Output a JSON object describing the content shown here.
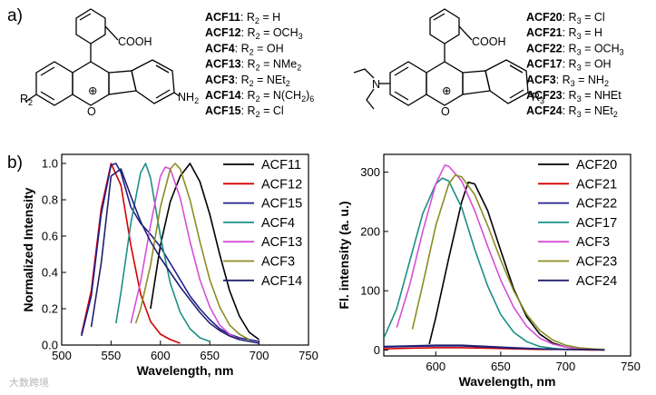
{
  "panel_a": {
    "label": "a)",
    "structure1": {
      "groups": {
        "acid": "COOH",
        "amine": "NH",
        "amine_sub": "2",
        "r_group": "R",
        "r_group_sub": "2",
        "oxygen": "O",
        "charge": "⊕"
      },
      "compounds": [
        {
          "name": "ACF11",
          "prefix": ": R",
          "sub": "2",
          "value": " = H"
        },
        {
          "name": "ACF12",
          "prefix": ": R",
          "sub": "2",
          "value": " = OCH",
          "value_sub": "3"
        },
        {
          "name": "ACF4",
          "prefix": ": R",
          "sub": "2",
          "value": " = OH"
        },
        {
          "name": "ACF13",
          "prefix": ": R",
          "sub": "2",
          "value": " = NMe",
          "value_sub": "2"
        },
        {
          "name": "ACF3",
          "prefix": ": R",
          "sub": "2",
          "value": " = NEt",
          "value_sub": "2"
        },
        {
          "name": "ACF14",
          "prefix": ": R",
          "sub": "2",
          "value": " = N(CH",
          "value_sub": "2",
          "value_tail": ")",
          "tail_sub": "6"
        },
        {
          "name": "ACF15",
          "prefix": ": R",
          "sub": "2",
          "value": " = Cl"
        }
      ]
    },
    "structure2": {
      "groups": {
        "acid": "COOH",
        "r_group": "R",
        "r_group_sub": "3",
        "nitrogen": "N",
        "oxygen": "O",
        "charge": "⊕"
      },
      "compounds": [
        {
          "name": "ACF20",
          "prefix": ": R",
          "sub": "3",
          "value": " = Cl"
        },
        {
          "name": "ACF21",
          "prefix": ": R",
          "sub": "3",
          "value": " = H"
        },
        {
          "name": "ACF22",
          "prefix": ": R",
          "sub": "3",
          "value": " = OCH",
          "value_sub": "3"
        },
        {
          "name": "ACF17",
          "prefix": ": R",
          "sub": "3",
          "value": " = OH"
        },
        {
          "name": "ACF3",
          "prefix": ": R",
          "sub": "3",
          "value": " = NH",
          "value_sub": "2"
        },
        {
          "name": "ACF23",
          "prefix": ": R",
          "sub": "3",
          "value": " = NHEt"
        },
        {
          "name": "ACF24",
          "prefix": ": R",
          "sub": "3",
          "value": " = NEt",
          "value_sub": "2"
        }
      ]
    }
  },
  "panel_b_label": "b)",
  "watermark": "大数跨境",
  "chart_data": [
    {
      "type": "line",
      "xlabel": "Wavelength, nm",
      "ylabel": "Normalized Intensity",
      "xlim": [
        500,
        750
      ],
      "ylim": [
        0,
        1.05
      ],
      "xticks": [
        500,
        550,
        600,
        650,
        700,
        750
      ],
      "yticks": [
        0.0,
        0.2,
        0.4,
        0.6,
        0.8,
        1.0
      ],
      "ytick_labels": [
        "0.0",
        "0.2",
        "0.4",
        "0.6",
        "0.8",
        "1.0"
      ],
      "legend_position": "top-right",
      "series": [
        {
          "name": "ACF11",
          "color": "#000000",
          "x": [
            590,
            600,
            610,
            620,
            630,
            640,
            650,
            660,
            670,
            680,
            690,
            700
          ],
          "y": [
            0.2,
            0.55,
            0.79,
            0.93,
            1.0,
            0.9,
            0.72,
            0.5,
            0.3,
            0.16,
            0.07,
            0.03
          ]
        },
        {
          "name": "ACF12",
          "color": "#d40000",
          "x": [
            520,
            530,
            540,
            550,
            560,
            570,
            580,
            590,
            600,
            610,
            620
          ],
          "y": [
            0.06,
            0.3,
            0.75,
            1.0,
            0.88,
            0.55,
            0.28,
            0.13,
            0.06,
            0.03,
            0.01
          ]
        },
        {
          "name": "ACF15",
          "color": "#1f1f8c",
          "x": [
            520,
            530,
            540,
            550,
            555,
            560,
            570,
            580,
            590,
            600,
            610,
            620,
            630,
            640,
            650,
            660,
            670,
            680,
            690,
            700
          ],
          "y": [
            0.05,
            0.27,
            0.72,
            0.99,
            1.0,
            0.95,
            0.76,
            0.67,
            0.61,
            0.54,
            0.45,
            0.36,
            0.27,
            0.2,
            0.14,
            0.09,
            0.06,
            0.04,
            0.03,
            0.02
          ]
        },
        {
          "name": "ACF4",
          "color": "#1b8f86",
          "x": [
            555,
            560,
            570,
            580,
            585,
            590,
            600,
            610,
            620,
            630,
            640,
            650
          ],
          "y": [
            0.12,
            0.29,
            0.67,
            0.95,
            1.0,
            0.92,
            0.6,
            0.34,
            0.18,
            0.09,
            0.04,
            0.02
          ]
        },
        {
          "name": "ACF13",
          "color": "#d64fd6",
          "x": [
            570,
            580,
            590,
            600,
            605,
            610,
            620,
            630,
            640,
            650,
            660,
            670,
            680
          ],
          "y": [
            0.12,
            0.35,
            0.66,
            0.93,
            0.98,
            0.97,
            0.81,
            0.57,
            0.36,
            0.21,
            0.11,
            0.06,
            0.03
          ]
        },
        {
          "name": "ACF3",
          "color": "#8c8c23",
          "x": [
            575,
            580,
            590,
            600,
            610,
            615,
            620,
            630,
            640,
            650,
            660,
            670,
            680,
            690
          ],
          "y": [
            0.12,
            0.2,
            0.44,
            0.76,
            0.97,
            1.0,
            0.97,
            0.8,
            0.57,
            0.36,
            0.21,
            0.11,
            0.06,
            0.03
          ]
        },
        {
          "name": "ACF14",
          "color": "#20206e",
          "x": [
            530,
            540,
            550,
            560,
            570,
            580,
            590,
            600,
            610,
            620,
            630,
            640,
            650,
            660,
            670,
            680,
            690,
            700
          ],
          "y": [
            0.1,
            0.45,
            0.93,
            0.97,
            0.82,
            0.68,
            0.57,
            0.48,
            0.4,
            0.32,
            0.25,
            0.18,
            0.12,
            0.08,
            0.05,
            0.03,
            0.02,
            0.01
          ]
        }
      ]
    },
    {
      "type": "line",
      "xlabel": "Wavelength, nm",
      "ylabel": "Fl. intensity (a. u.)",
      "xlim": [
        560,
        750
      ],
      "ylim": [
        -10,
        330
      ],
      "xticks": [
        600,
        650,
        700,
        750
      ],
      "yticks": [
        0,
        100,
        200,
        300
      ],
      "ytick_labels": [
        "0",
        "100",
        "200",
        "300"
      ],
      "legend_position": "top-right",
      "series": [
        {
          "name": "ACF20",
          "color": "#000000",
          "x": [
            595,
            600,
            610,
            620,
            625,
            630,
            640,
            650,
            660,
            670,
            680,
            690,
            700,
            710
          ],
          "y": [
            10,
            55,
            155,
            250,
            283,
            280,
            235,
            168,
            103,
            56,
            27,
            12,
            5,
            2
          ]
        },
        {
          "name": "ACF21",
          "color": "#d40000",
          "x": [
            560,
            580,
            600,
            620,
            640,
            660,
            680,
            700,
            720,
            730
          ],
          "y": [
            2,
            3,
            4,
            4,
            3,
            2,
            1,
            1,
            0,
            0
          ]
        },
        {
          "name": "ACF22",
          "color": "#1f1f8c",
          "x": [
            560,
            580,
            600,
            620,
            640,
            660,
            680,
            700,
            720,
            730
          ],
          "y": [
            5,
            6,
            7,
            7,
            5,
            3,
            2,
            1,
            1,
            0
          ]
        },
        {
          "name": "ACF17",
          "color": "#1b8f86",
          "x": [
            560,
            570,
            580,
            590,
            600,
            605,
            610,
            620,
            630,
            640,
            650,
            660,
            670,
            680,
            690,
            700
          ],
          "y": [
            20,
            70,
            150,
            230,
            280,
            290,
            285,
            240,
            170,
            108,
            60,
            30,
            14,
            6,
            3,
            1
          ]
        },
        {
          "name": "ACF3",
          "color": "#d64fd6",
          "x": [
            570,
            580,
            590,
            600,
            607,
            610,
            620,
            630,
            640,
            650,
            660,
            670,
            680,
            690,
            700,
            710,
            720
          ],
          "y": [
            38,
            110,
            200,
            280,
            312,
            310,
            285,
            235,
            175,
            118,
            72,
            40,
            20,
            10,
            5,
            2,
            1
          ]
        },
        {
          "name": "ACF23",
          "color": "#8c8c23",
          "x": [
            582,
            590,
            600,
            610,
            615,
            620,
            630,
            640,
            650,
            660,
            670,
            680,
            690,
            700,
            710,
            720,
            730
          ],
          "y": [
            35,
            110,
            210,
            280,
            295,
            292,
            262,
            210,
            152,
            100,
            60,
            33,
            17,
            8,
            4,
            2,
            1
          ]
        },
        {
          "name": "ACF24",
          "color": "#20206e",
          "x": [
            560,
            580,
            600,
            620,
            640,
            660,
            680,
            700,
            720,
            730
          ],
          "y": [
            6,
            7,
            8,
            8,
            6,
            4,
            2,
            1,
            1,
            0
          ]
        }
      ]
    }
  ]
}
